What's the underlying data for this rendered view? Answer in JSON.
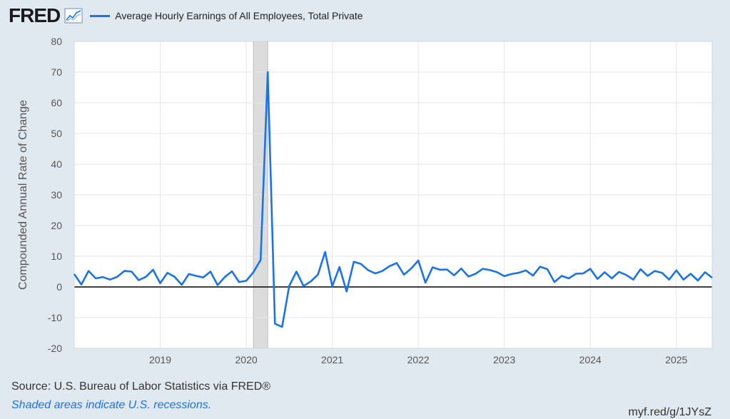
{
  "header": {
    "logo_text": "FRED",
    "legend_label": "Average Hourly Earnings of All Employees, Total Private",
    "legend_color": "#1a73e8"
  },
  "footer": {
    "source": "Source: U.S. Bureau of Labor Statistics via FRED®",
    "recession_note": "Shaded areas indicate U.S. recessions.",
    "short_url": "myf.red/g/1JYsZ"
  },
  "chart_data": {
    "type": "line",
    "title": "",
    "xlabel": "",
    "ylabel": "Compounded Annual Rate of Change",
    "ylim": [
      -20,
      80
    ],
    "yticks": [
      -20,
      -10,
      0,
      10,
      20,
      30,
      40,
      50,
      60,
      70,
      80
    ],
    "xlim": [
      "2018-01",
      "2025-06"
    ],
    "xticks": [
      "2019",
      "2020",
      "2021",
      "2022",
      "2023",
      "2024",
      "2025"
    ],
    "recession_shading": [
      {
        "start": "2020-02",
        "end": "2020-04"
      }
    ],
    "grid": true,
    "zero_line": true,
    "series": [
      {
        "name": "Average Hourly Earnings of All Employees, Total Private",
        "color": "#1a73e8",
        "x": [
          "2018-01",
          "2018-02",
          "2018-03",
          "2018-04",
          "2018-05",
          "2018-06",
          "2018-07",
          "2018-08",
          "2018-09",
          "2018-10",
          "2018-11",
          "2018-12",
          "2019-01",
          "2019-02",
          "2019-03",
          "2019-04",
          "2019-05",
          "2019-06",
          "2019-07",
          "2019-08",
          "2019-09",
          "2019-10",
          "2019-11",
          "2019-12",
          "2020-01",
          "2020-02",
          "2020-03",
          "2020-04",
          "2020-05",
          "2020-06",
          "2020-07",
          "2020-08",
          "2020-09",
          "2020-10",
          "2020-11",
          "2020-12",
          "2021-01",
          "2021-02",
          "2021-03",
          "2021-04",
          "2021-05",
          "2021-06",
          "2021-07",
          "2021-08",
          "2021-09",
          "2021-10",
          "2021-11",
          "2021-12",
          "2022-01",
          "2022-02",
          "2022-03",
          "2022-04",
          "2022-05",
          "2022-06",
          "2022-07",
          "2022-08",
          "2022-09",
          "2022-10",
          "2022-11",
          "2022-12",
          "2023-01",
          "2023-02",
          "2023-03",
          "2023-04",
          "2023-05",
          "2023-06",
          "2023-07",
          "2023-08",
          "2023-09",
          "2023-10",
          "2023-11",
          "2023-12",
          "2024-01",
          "2024-02",
          "2024-03",
          "2024-04",
          "2024-05",
          "2024-06",
          "2024-07",
          "2024-08",
          "2024-09",
          "2024-10",
          "2024-11",
          "2024-12",
          "2025-01",
          "2025-02",
          "2025-03",
          "2025-04",
          "2025-05",
          "2025-06"
        ],
        "values": [
          4.2,
          0.8,
          5.2,
          2.8,
          3.2,
          2.4,
          3.3,
          5.2,
          5.0,
          2.2,
          3.3,
          5.6,
          1.2,
          4.6,
          3.3,
          0.7,
          4.2,
          3.6,
          3.1,
          5.0,
          0.6,
          3.2,
          5.1,
          1.6,
          2.0,
          4.8,
          8.8,
          70.0,
          -12.0,
          -13.0,
          0.3,
          5.0,
          0.3,
          1.8,
          4.0,
          11.4,
          0.2,
          6.5,
          -1.5,
          8.2,
          7.5,
          5.5,
          4.4,
          5.2,
          6.8,
          7.8,
          4.0,
          6.0,
          8.6,
          1.4,
          6.4,
          5.6,
          5.7,
          3.8,
          6.0,
          3.4,
          4.3,
          5.9,
          5.5,
          4.8,
          3.5,
          4.2,
          4.6,
          5.4,
          3.7,
          6.6,
          5.8,
          1.6,
          3.6,
          2.8,
          4.3,
          4.4,
          5.9,
          2.6,
          4.8,
          2.8,
          4.9,
          3.9,
          2.4,
          5.8,
          3.6,
          5.2,
          4.6,
          2.4,
          5.4,
          2.4,
          4.3,
          2.1,
          4.8,
          3.0
        ]
      }
    ]
  }
}
